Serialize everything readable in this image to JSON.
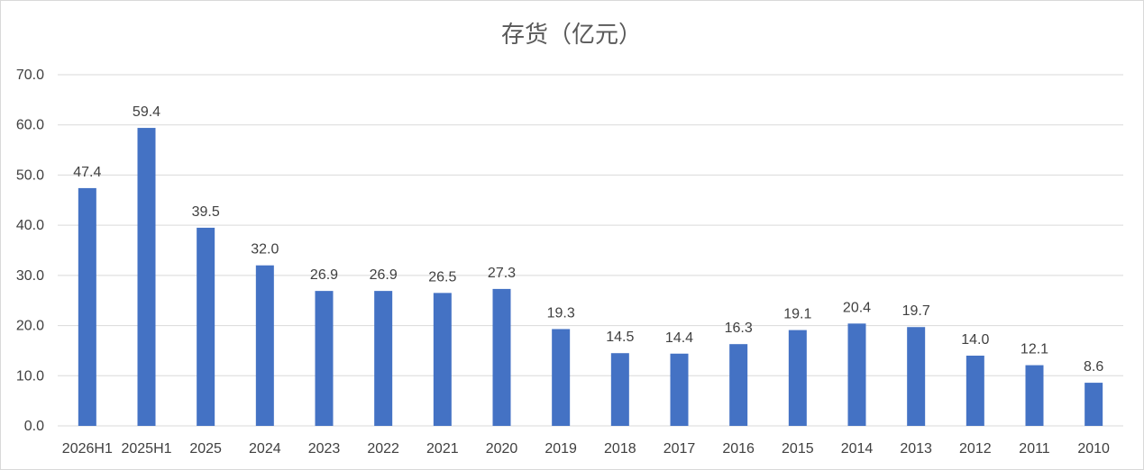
{
  "chart_data": {
    "type": "bar",
    "title": "存货（亿元）",
    "xlabel": "",
    "ylabel": "",
    "ylim": [
      0,
      70
    ],
    "yticks": [
      "0.0",
      "10.0",
      "20.0",
      "30.0",
      "40.0",
      "50.0",
      "60.0",
      "70.0"
    ],
    "grid": true,
    "legend": "none",
    "bar_color": "#4472C4",
    "categories": [
      "2026H1",
      "2025H1",
      "2025",
      "2024",
      "2023",
      "2022",
      "2021",
      "2020",
      "2019",
      "2018",
      "2017",
      "2016",
      "2015",
      "2014",
      "2013",
      "2012",
      "2011",
      "2010"
    ],
    "values": [
      47.4,
      59.4,
      39.5,
      32.0,
      26.9,
      26.9,
      26.5,
      27.3,
      19.3,
      14.5,
      14.4,
      16.3,
      19.1,
      20.4,
      19.7,
      14.0,
      12.1,
      8.6
    ],
    "data_labels": [
      "47.4",
      "59.4",
      "39.5",
      "32.0",
      "26.9",
      "26.9",
      "26.5",
      "27.3",
      "19.3",
      "14.5",
      "14.4",
      "16.3",
      "19.1",
      "20.4",
      "19.7",
      "14.0",
      "12.1",
      "8.6"
    ]
  }
}
